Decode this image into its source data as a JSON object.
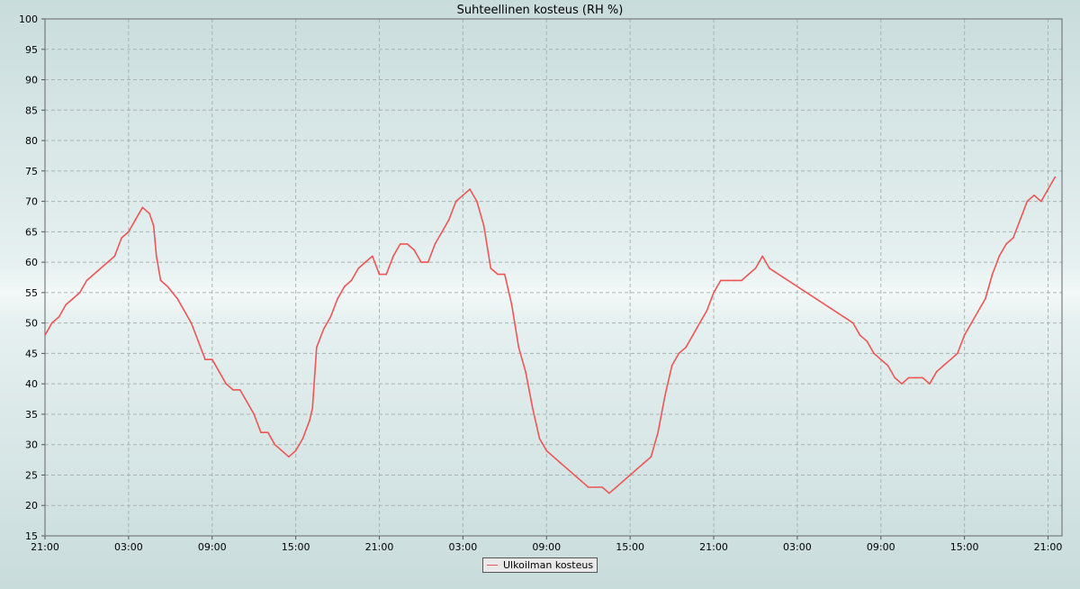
{
  "chart_data": {
    "type": "line",
    "title": "Suhteellinen kosteus (RH %)",
    "xlabel": "",
    "ylabel": "",
    "ylim": [
      15,
      100
    ],
    "y_ticks": [
      15,
      20,
      25,
      30,
      35,
      40,
      45,
      50,
      55,
      60,
      65,
      70,
      75,
      80,
      85,
      90,
      95,
      100
    ],
    "x_unit": "hours since first 21:00",
    "xlim": [
      0,
      73
    ],
    "x_ticks": [
      {
        "x": 0,
        "label": "21:00"
      },
      {
        "x": 6,
        "label": "03:00"
      },
      {
        "x": 12,
        "label": "09:00"
      },
      {
        "x": 18,
        "label": "15:00"
      },
      {
        "x": 24,
        "label": "21:00"
      },
      {
        "x": 30,
        "label": "03:00"
      },
      {
        "x": 36,
        "label": "09:00"
      },
      {
        "x": 42,
        "label": "15:00"
      },
      {
        "x": 48,
        "label": "21:00"
      },
      {
        "x": 54,
        "label": "03:00"
      },
      {
        "x": 60,
        "label": "09:00"
      },
      {
        "x": 66,
        "label": "15:00"
      },
      {
        "x": 72,
        "label": "21:00"
      }
    ],
    "grid": true,
    "legend_position": "bottom-center",
    "series": [
      {
        "name": "Ulkoilman kosteus",
        "color": "#ee5555",
        "points": [
          [
            0,
            48
          ],
          [
            0.5,
            50
          ],
          [
            1,
            51
          ],
          [
            1.5,
            53
          ],
          [
            2,
            54
          ],
          [
            2.5,
            55
          ],
          [
            3,
            57
          ],
          [
            3.5,
            58
          ],
          [
            4,
            59
          ],
          [
            4.5,
            60
          ],
          [
            5,
            61
          ],
          [
            5.5,
            64
          ],
          [
            6,
            65
          ],
          [
            6.5,
            67
          ],
          [
            7,
            69
          ],
          [
            7.5,
            68
          ],
          [
            7.8,
            66
          ],
          [
            8,
            61
          ],
          [
            8.3,
            57
          ],
          [
            8.8,
            56
          ],
          [
            9.5,
            54
          ],
          [
            10,
            52
          ],
          [
            10.5,
            50
          ],
          [
            11,
            47
          ],
          [
            11.5,
            44
          ],
          [
            12,
            44
          ],
          [
            12.5,
            42
          ],
          [
            13,
            40
          ],
          [
            13.5,
            39
          ],
          [
            14,
            39
          ],
          [
            14.5,
            37
          ],
          [
            15,
            35
          ],
          [
            15.5,
            32
          ],
          [
            16,
            32
          ],
          [
            16.5,
            30
          ],
          [
            17,
            29
          ],
          [
            17.5,
            28
          ],
          [
            18,
            29
          ],
          [
            18.5,
            31
          ],
          [
            19,
            34
          ],
          [
            19.2,
            36
          ],
          [
            19.5,
            46
          ],
          [
            20,
            49
          ],
          [
            20.5,
            51
          ],
          [
            21,
            54
          ],
          [
            21.5,
            56
          ],
          [
            22,
            57
          ],
          [
            22.5,
            59
          ],
          [
            23,
            60
          ],
          [
            23.5,
            61
          ],
          [
            24,
            58
          ],
          [
            24.5,
            58
          ],
          [
            25,
            61
          ],
          [
            25.5,
            63
          ],
          [
            26,
            63
          ],
          [
            26.5,
            62
          ],
          [
            27,
            60
          ],
          [
            27.5,
            60
          ],
          [
            28,
            63
          ],
          [
            28.5,
            65
          ],
          [
            29,
            67
          ],
          [
            29.5,
            70
          ],
          [
            30,
            71
          ],
          [
            30.5,
            72
          ],
          [
            31,
            70
          ],
          [
            31.5,
            66
          ],
          [
            32,
            59
          ],
          [
            32.5,
            58
          ],
          [
            33,
            58
          ],
          [
            33.5,
            53
          ],
          [
            34,
            46
          ],
          [
            34.5,
            42
          ],
          [
            35,
            36
          ],
          [
            35.5,
            31
          ],
          [
            36,
            29
          ],
          [
            36.5,
            28
          ],
          [
            37,
            27
          ],
          [
            37.5,
            26
          ],
          [
            38,
            25
          ],
          [
            38.5,
            24
          ],
          [
            39,
            23
          ],
          [
            39.5,
            23
          ],
          [
            40,
            23
          ],
          [
            40.5,
            22
          ],
          [
            41,
            23
          ],
          [
            41.5,
            24
          ],
          [
            42,
            25
          ],
          [
            42.5,
            26
          ],
          [
            43,
            27
          ],
          [
            43.5,
            28
          ],
          [
            44,
            32
          ],
          [
            44.5,
            38
          ],
          [
            45,
            43
          ],
          [
            45.5,
            45
          ],
          [
            46,
            46
          ],
          [
            46.5,
            48
          ],
          [
            47,
            50
          ],
          [
            47.5,
            52
          ],
          [
            48,
            55
          ],
          [
            48.5,
            57
          ],
          [
            49,
            57
          ],
          [
            49.5,
            57
          ],
          [
            50,
            57
          ],
          [
            50.5,
            58
          ],
          [
            51,
            59
          ],
          [
            51.5,
            61
          ],
          [
            52,
            59
          ],
          [
            58,
            50
          ],
          [
            58.5,
            48
          ],
          [
            59,
            47
          ],
          [
            59.5,
            45
          ],
          [
            60,
            44
          ],
          [
            60.5,
            43
          ],
          [
            61,
            41
          ],
          [
            61.5,
            40
          ],
          [
            62,
            41
          ],
          [
            62.5,
            41
          ],
          [
            63,
            41
          ],
          [
            63.5,
            40
          ],
          [
            64,
            42
          ],
          [
            64.5,
            43
          ],
          [
            65,
            44
          ],
          [
            65.5,
            45
          ],
          [
            66,
            48
          ],
          [
            66.5,
            50
          ],
          [
            67,
            52
          ],
          [
            67.5,
            54
          ],
          [
            68,
            58
          ],
          [
            68.5,
            61
          ],
          [
            69,
            63
          ],
          [
            69.5,
            64
          ],
          [
            70,
            67
          ],
          [
            70.5,
            70
          ],
          [
            71,
            71
          ],
          [
            71.5,
            70
          ],
          [
            72,
            72
          ],
          [
            72.5,
            74
          ]
        ]
      }
    ]
  }
}
